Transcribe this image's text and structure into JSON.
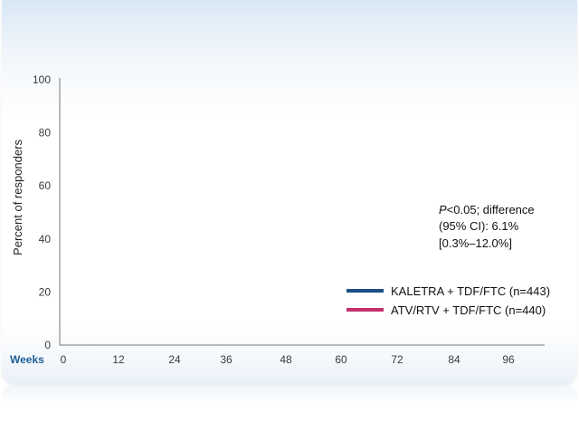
{
  "chart_data": {
    "type": "line",
    "title": "",
    "ylabel": "Percent of responders",
    "xlabel": "Weeks",
    "ylim": [
      0,
      100
    ],
    "yticks": [
      0,
      20,
      40,
      60,
      80,
      100
    ],
    "xticks": [
      0,
      12,
      24,
      36,
      48,
      60,
      72,
      84,
      96
    ],
    "grid": false,
    "legend_position": "bottom-right",
    "series": [
      {
        "name": "KALETRA + TDF/FTC (n=443)",
        "color": "#1c4f86",
        "values": []
      },
      {
        "name": "ATV/RTV + TDF/FTC (n=440)",
        "color": "#c4306e",
        "values": []
      }
    ],
    "annotation": {
      "italic_part": "P",
      "line1_rest": "<0.05; difference",
      "line2": "(95% CI): 6.1%",
      "line3": "[0.3%–12.0%]"
    }
  }
}
